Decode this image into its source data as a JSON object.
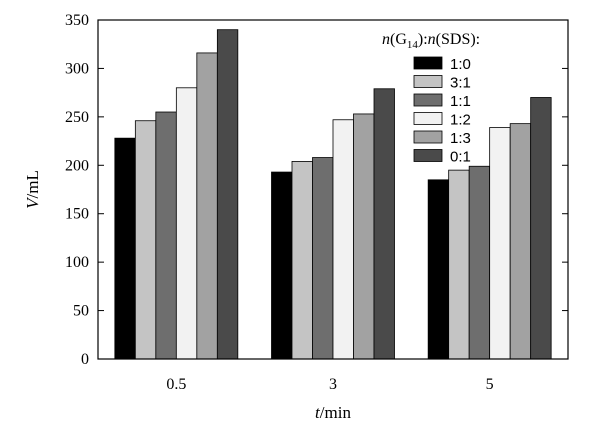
{
  "chart_data": {
    "type": "bar",
    "categories": [
      "0.5",
      "3",
      "5"
    ],
    "xlabel": {
      "var": "t",
      "unit": "/min"
    },
    "ylabel": {
      "var": "V",
      "unit": "/mL"
    },
    "ylim": [
      0,
      350
    ],
    "yticks": [
      "0",
      "50",
      "100",
      "150",
      "200",
      "250",
      "300",
      "350"
    ],
    "grid": false,
    "legend": {
      "position": "top-right",
      "title": {
        "n1": "n",
        "p1": "(G",
        "sub": "14",
        "p2": "):",
        "n2": "n",
        "p3": "(SDS):"
      }
    },
    "series": [
      {
        "name": "1:0",
        "color": "#000000",
        "values": [
          228,
          193,
          185
        ]
      },
      {
        "name": "3:1",
        "color": "#c4c4c4",
        "values": [
          246,
          204,
          195
        ]
      },
      {
        "name": "1:1",
        "color": "#6e6e6e",
        "values": [
          255,
          208,
          199
        ]
      },
      {
        "name": "1:2",
        "color": "#f2f2f2",
        "values": [
          280,
          247,
          239
        ]
      },
      {
        "name": "1:3",
        "color": "#a2a2a2",
        "values": [
          316,
          253,
          243
        ]
      },
      {
        "name": "0:1",
        "color": "#4a4a4a",
        "values": [
          340,
          279,
          270
        ]
      }
    ]
  }
}
